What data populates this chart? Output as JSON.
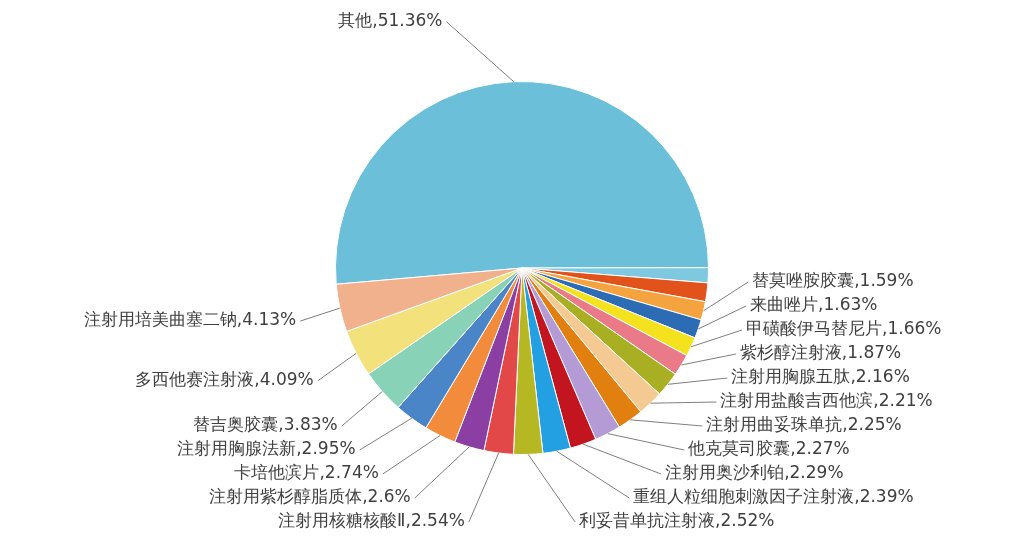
{
  "chart_data": {
    "type": "pie",
    "categories": [
      "其他",
      null,
      null,
      "替莫唑胺胶囊",
      "来曲唑片",
      "甲磺酸伊马替尼片",
      "紫杉醇注射液",
      "注射用胸腺五肽",
      "注射用盐酸吉西他滨",
      "注射用曲妥珠单抗",
      "他克莫司胶囊",
      "注射用奥沙利铂",
      "重组人粒细胞刺激因子注射液",
      "利妥昔单抗注射液",
      "注射用核糖核酸Ⅱ",
      "注射用紫杉醇脂质体",
      "卡培他滨片",
      "注射用胸腺法新",
      "替吉奥胶囊",
      "多西他赛注射液",
      "注射用培美曲塞二钠"
    ],
    "values": [
      51.36,
      1.3,
      1.62,
      1.59,
      1.63,
      1.66,
      1.87,
      2.16,
      2.21,
      2.25,
      2.27,
      2.29,
      2.39,
      2.52,
      2.54,
      2.6,
      2.74,
      2.95,
      3.83,
      4.09,
      4.13
    ],
    "value_labels": [
      "51.36%",
      null,
      null,
      "1.59%",
      "1.63%",
      "1.66%",
      "1.87%",
      "2.16%",
      "2.21%",
      "2.25%",
      "2.27%",
      "2.29%",
      "2.39%",
      "2.52%",
      "2.54%",
      "2.6%",
      "2.74%",
      "2.95%",
      "3.83%",
      "4.09%",
      "4.13%"
    ],
    "colors": [
      "#6bbfd9",
      "#7fc9e0",
      "#e2531c",
      "#f5a33f",
      "#2b6cb4",
      "#f4e21e",
      "#ea7a88",
      "#a9af22",
      "#f4c992",
      "#e1800f",
      "#b59bd6",
      "#c2151f",
      "#22a0e2",
      "#b5b822",
      "#e24848",
      "#8b3fa2",
      "#f38b3c",
      "#4a85c8",
      "#88d3b8",
      "#f3e27c",
      "#f1b18c"
    ]
  }
}
